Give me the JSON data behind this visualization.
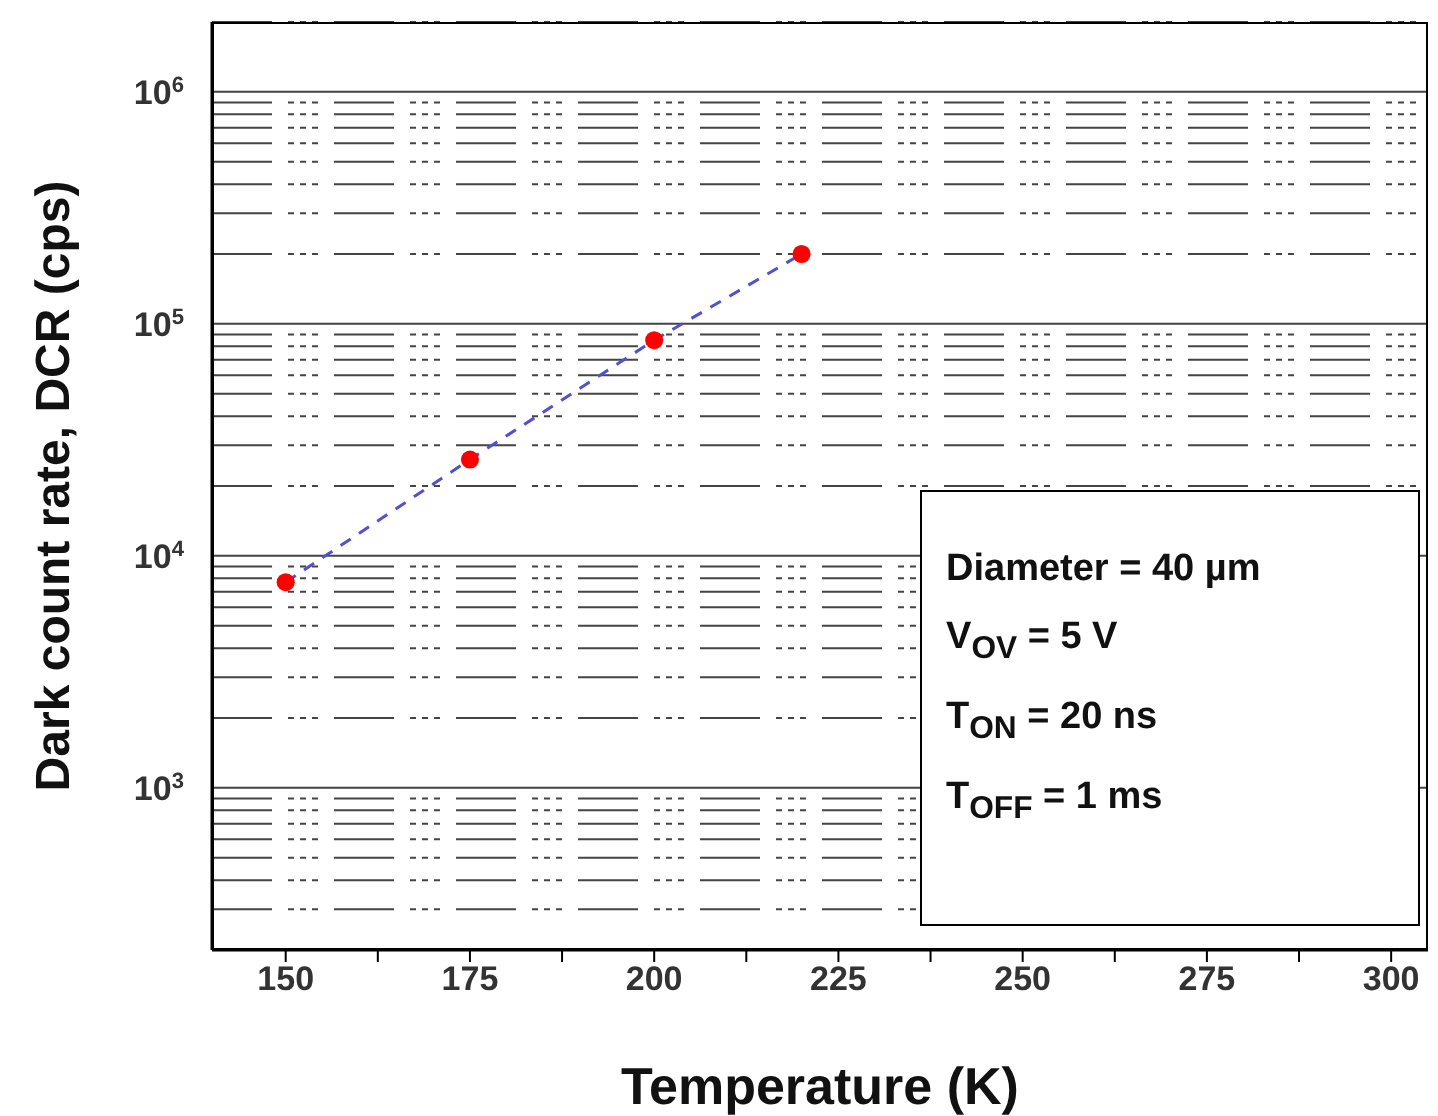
{
  "chart_data": {
    "type": "scatter",
    "xlabel": "Temperature (K)",
    "ylabel": "Dark count rate, DCR (cps)",
    "log": "y",
    "grid": "y",
    "marker": "circle",
    "xlim": [
      140,
      305
    ],
    "xticks": [
      150,
      {
        "value": 162.5,
        "label": null
      },
      175,
      {
        "value": 187.5,
        "label": null
      },
      200,
      {
        "value": 212.5,
        "label": null
      },
      225,
      {
        "value": 237.5,
        "label": null
      },
      250,
      {
        "value": 262.5,
        "label": null
      },
      275,
      {
        "value": 287.5,
        "label": null
      },
      300
    ],
    "ylim": [
      200,
      2000000
    ],
    "yticks": [
      {
        "value": 1000,
        "label": "10$^{3}$"
      },
      {
        "value": 10000,
        "label": "10$^{4}$"
      },
      {
        "value": 100000,
        "label": "10$^{5}$"
      },
      {
        "value": 1000000,
        "label": "10$^{6}$"
      }
    ],
    "series": [
      {
        "type": "line",
        "color": "#5050d0",
        "line_style": "dashed",
        "marker": "none",
        "x": [
          150,
          175,
          200,
          220
        ],
        "values": [
          7700,
          26000,
          85000,
          200000
        ]
      },
      {
        "color": "#ff0000",
        "x": [
          150,
          175,
          200,
          220
        ],
        "values": [
          7700,
          26000,
          85000,
          200000
        ]
      }
    ],
    "annotations": [
      "Diameter = 40 µm",
      "V$_{OV}$ = 5 V",
      "T$_{ON}$ = 20 ns",
      "T$_{OFF}$ = 1 ms"
    ]
  }
}
